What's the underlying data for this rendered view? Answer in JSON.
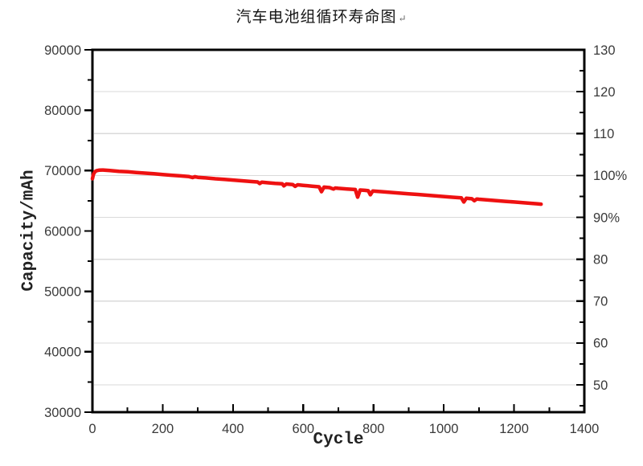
{
  "title": {
    "text": "汽车电池组循环寿命图",
    "mark": "↵"
  },
  "colors": {
    "series_red": "#ee1111",
    "axis": "#000000",
    "tick_label": "#3a3a3a",
    "gridline": "#dadada",
    "background": "#ffffff"
  },
  "chart_data": {
    "type": "line",
    "title": "汽车电池组循环寿命图",
    "xlabel": "Cycle",
    "ylabel_left": "Capacity/mAh",
    "legend": "none",
    "grid": "horizontal-light",
    "xlim": [
      0,
      1400
    ],
    "xticks": [
      0,
      200,
      400,
      600,
      800,
      1000,
      1200,
      1400
    ],
    "x_minor_ticks": [
      100,
      300,
      500,
      700,
      900,
      1100,
      1300
    ],
    "ylim_left": [
      30000,
      90000
    ],
    "yticks_left": [
      90000,
      80000,
      70000,
      60000,
      50000,
      40000,
      30000
    ],
    "y_minor_ticks_left": [
      85000,
      75000,
      65000,
      55000,
      45000,
      35000
    ],
    "ylim_right": [
      43.5,
      130
    ],
    "yticks_right": [
      {
        "v": 130,
        "label": "130"
      },
      {
        "v": 120,
        "label": "120"
      },
      {
        "v": 110,
        "label": "110"
      },
      {
        "v": 100,
        "label": "100%"
      },
      {
        "v": 90,
        "label": "90%"
      },
      {
        "v": 80,
        "label": "80"
      },
      {
        "v": 70,
        "label": "70"
      },
      {
        "v": 60,
        "label": "60"
      },
      {
        "v": 50,
        "label": "50"
      }
    ],
    "y_minor_ticks_right": [
      125,
      115,
      105,
      95,
      85,
      75,
      65,
      55,
      45
    ],
    "gridlines_right_values": [
      120,
      110,
      100,
      90,
      80,
      70,
      60,
      50
    ],
    "series": [
      {
        "name": "capacity",
        "color": "#ee1111",
        "stroke_width": 4.5,
        "points": [
          [
            0,
            68650
          ],
          [
            3,
            69400
          ],
          [
            7,
            69810
          ],
          [
            12,
            69990
          ],
          [
            20,
            70080
          ],
          [
            30,
            70100
          ],
          [
            50,
            70010
          ],
          [
            75,
            69890
          ],
          [
            100,
            69800
          ],
          [
            125,
            69690
          ],
          [
            150,
            69580
          ],
          [
            175,
            69470
          ],
          [
            200,
            69340
          ],
          [
            225,
            69230
          ],
          [
            250,
            69120
          ],
          [
            275,
            69010
          ],
          [
            285,
            68850
          ],
          [
            292,
            68990
          ],
          [
            300,
            68890
          ],
          [
            325,
            68780
          ],
          [
            350,
            68650
          ],
          [
            375,
            68550
          ],
          [
            400,
            68430
          ],
          [
            425,
            68320
          ],
          [
            450,
            68200
          ],
          [
            470,
            68110
          ],
          [
            476,
            67850
          ],
          [
            482,
            68080
          ],
          [
            500,
            67980
          ],
          [
            520,
            67890
          ],
          [
            540,
            67820
          ],
          [
            545,
            67480
          ],
          [
            552,
            67780
          ],
          [
            570,
            67690
          ],
          [
            577,
            67400
          ],
          [
            584,
            67650
          ],
          [
            600,
            67550
          ],
          [
            625,
            67430
          ],
          [
            645,
            67320
          ],
          [
            652,
            66500
          ],
          [
            659,
            67260
          ],
          [
            675,
            67180
          ],
          [
            686,
            66950
          ],
          [
            691,
            67120
          ],
          [
            700,
            67070
          ],
          [
            725,
            66960
          ],
          [
            748,
            66860
          ],
          [
            755,
            65600
          ],
          [
            762,
            66790
          ],
          [
            775,
            66730
          ],
          [
            785,
            66670
          ],
          [
            791,
            66000
          ],
          [
            798,
            66630
          ],
          [
            825,
            66500
          ],
          [
            850,
            66390
          ],
          [
            875,
            66270
          ],
          [
            900,
            66160
          ],
          [
            925,
            66050
          ],
          [
            950,
            65940
          ],
          [
            975,
            65820
          ],
          [
            1000,
            65710
          ],
          [
            1025,
            65590
          ],
          [
            1050,
            65480
          ],
          [
            1057,
            64800
          ],
          [
            1064,
            65410
          ],
          [
            1080,
            65340
          ],
          [
            1087,
            65020
          ],
          [
            1094,
            65290
          ],
          [
            1100,
            65250
          ],
          [
            1125,
            65140
          ],
          [
            1150,
            65020
          ],
          [
            1175,
            64910
          ],
          [
            1200,
            64800
          ],
          [
            1225,
            64680
          ],
          [
            1250,
            64570
          ],
          [
            1265,
            64510
          ],
          [
            1277,
            64450
          ]
        ]
      }
    ]
  }
}
